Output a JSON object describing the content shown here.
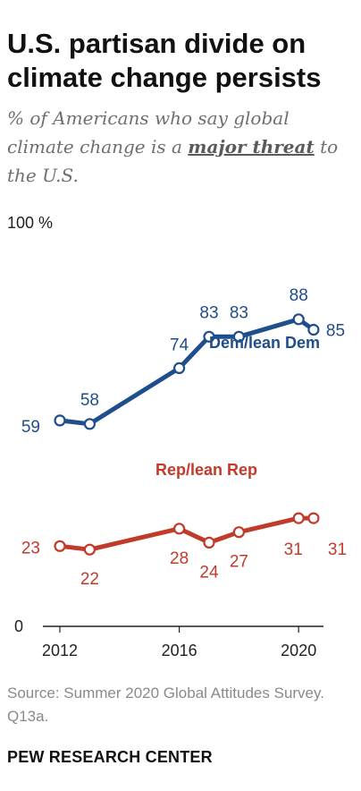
{
  "header": {
    "title": "U.S. partisan divide on climate change persists",
    "subtitle_before": "% of Americans who say global climate change is a ",
    "subtitle_emphasis": "major threat",
    "subtitle_after": " to the U.S."
  },
  "footer": {
    "source": "Source: Summer 2020 Global Attitudes Survey. Q13a.",
    "brand": "PEW RESEARCH CENTER"
  },
  "chart_data": {
    "type": "line",
    "x": [
      2012,
      2013,
      2016,
      2017,
      2018,
      2020,
      2020.5
    ],
    "x_tick_labels": [
      "2012",
      "2016",
      "2020"
    ],
    "x_tick_values": [
      2012,
      2016,
      2020
    ],
    "y_tick_labels": [
      "100 %",
      "0"
    ],
    "y_tick_values": [
      100,
      0
    ],
    "ylim": [
      0,
      100
    ],
    "grid": false,
    "series": [
      {
        "name": "Dem/lean Dem",
        "color": "#1f4e8c",
        "values": [
          59,
          58,
          74,
          83,
          83,
          88,
          85
        ],
        "labels": [
          "59",
          "58",
          "74",
          "83",
          "83",
          "88",
          "85"
        ]
      },
      {
        "name": "Rep/lean Rep",
        "color": "#c23b2a",
        "values": [
          23,
          22,
          28,
          24,
          27,
          31,
          31
        ],
        "labels": [
          "23",
          "22",
          "28",
          "24",
          "27",
          "31",
          "31"
        ]
      }
    ]
  }
}
